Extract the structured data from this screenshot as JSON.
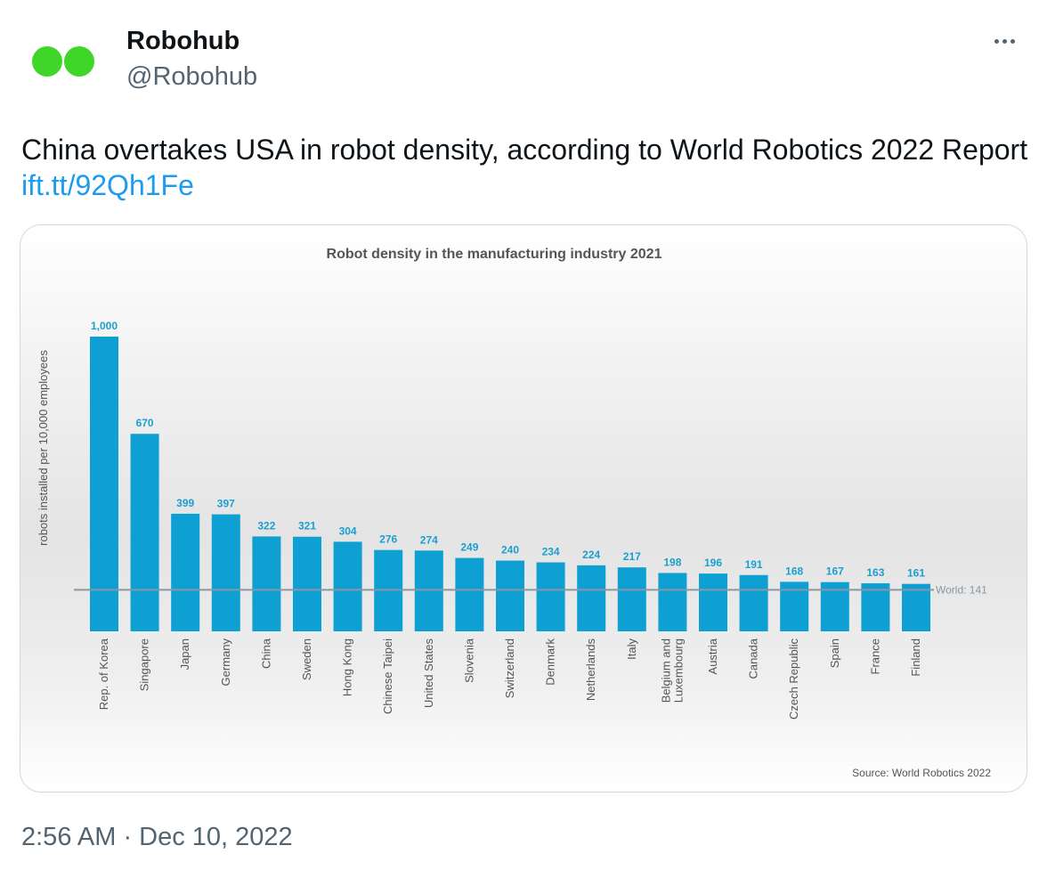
{
  "user": {
    "display_name": "Robohub",
    "handle": "@Robohub",
    "avatar_color": "#3fd629"
  },
  "tweet": {
    "text": "China overtakes USA in robot density, according to World Robotics 2022 Report",
    "link": "ift.tt/92Qh1Fe",
    "timestamp": "2:56 AM · Dec 10, 2022"
  },
  "colors": {
    "bar": "#0ea0d3",
    "bar_label": "#1a9fd0",
    "world_line": "#8a96a3",
    "link": "#1d9bf0"
  },
  "chart_data": {
    "type": "bar",
    "title": "Robot density in the manufacturing industry 2021",
    "ylabel": "robots installed per 10,000 employees",
    "xlabel": "",
    "ylim": [
      0,
      1000
    ],
    "categories": [
      "Rep. of Korea",
      "Singapore",
      "Japan",
      "Germany",
      "China",
      "Sweden",
      "Hong Kong",
      "Chinese Taipei",
      "United States",
      "Slovenia",
      "Switzerland",
      "Denmark",
      "Netherlands",
      "Italy",
      "Belgium and\nLuxembourg",
      "Austria",
      "Canada",
      "Czech Republic",
      "Spain",
      "France",
      "Finland"
    ],
    "values": [
      1000,
      670,
      399,
      397,
      322,
      321,
      304,
      276,
      274,
      249,
      240,
      234,
      224,
      217,
      198,
      196,
      191,
      168,
      167,
      163,
      161
    ],
    "value_labels": [
      "1,000",
      "670",
      "399",
      "397",
      "322",
      "321",
      "304",
      "276",
      "274",
      "249",
      "240",
      "234",
      "224",
      "217",
      "198",
      "196",
      "191",
      "168",
      "167",
      "163",
      "161"
    ],
    "reference_line": {
      "label": "World: 141",
      "value": 141
    },
    "source": "Source: World Robotics 2022"
  }
}
